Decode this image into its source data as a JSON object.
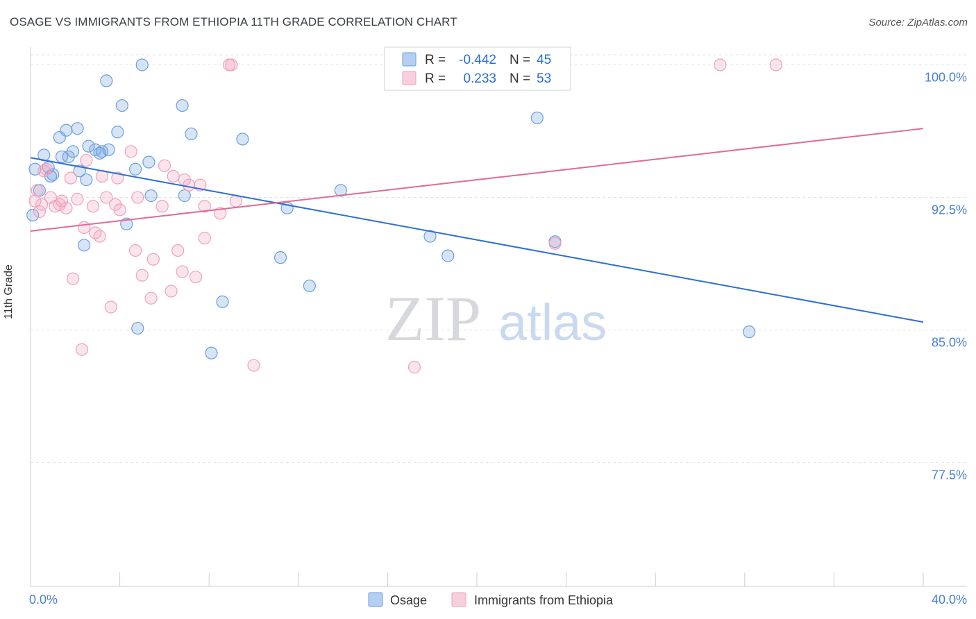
{
  "title": "OSAGE VS IMMIGRANTS FROM ETHIOPIA 11TH GRADE CORRELATION CHART",
  "source": "Source: ZipAtlas.com",
  "watermark": {
    "zip": "ZIP",
    "atlas": "atlas"
  },
  "chart_data": {
    "type": "scatter",
    "ylabel": "11th Grade",
    "xlim": [
      0,
      40
    ],
    "ylim": [
      70.5,
      101
    ],
    "x_tick_labels": [
      {
        "value": 0,
        "label": "0.0%"
      },
      {
        "value": 40,
        "label": "40.0%"
      }
    ],
    "y_ticks": [
      77.5,
      85.0,
      92.5,
      100.0
    ],
    "y_tick_labels": [
      "77.5%",
      "85.0%",
      "92.5%",
      "100.0%"
    ],
    "grid": true,
    "legend_position": "top-center",
    "stats": [
      {
        "r_label": "R =",
        "r": "-0.442",
        "n_label": "N =",
        "n": "45"
      },
      {
        "r_label": "R =",
        "r": "0.233",
        "n_label": "N =",
        "n": "53"
      }
    ],
    "series": [
      {
        "name": "Osage",
        "color": "#6a9fe0",
        "line_color": "#2a6fd4",
        "trend": {
          "x0": 0,
          "y0": 94.75,
          "x1": 40,
          "y1": 85.45
        },
        "points": [
          [
            0.2,
            94.1
          ],
          [
            0.4,
            92.9
          ],
          [
            0.6,
            94.9
          ],
          [
            0.8,
            94.2
          ],
          [
            0.9,
            93.7
          ],
          [
            1.0,
            93.8
          ],
          [
            1.3,
            95.9
          ],
          [
            1.4,
            94.8
          ],
          [
            1.6,
            96.3
          ],
          [
            1.7,
            94.8
          ],
          [
            1.9,
            95.1
          ],
          [
            2.1,
            96.4
          ],
          [
            2.2,
            94.0
          ],
          [
            2.4,
            89.8
          ],
          [
            2.5,
            93.5
          ],
          [
            2.6,
            95.4
          ],
          [
            2.9,
            95.2
          ],
          [
            3.1,
            95.0
          ],
          [
            3.2,
            95.1
          ],
          [
            3.5,
            95.2
          ],
          [
            3.4,
            99.1
          ],
          [
            3.9,
            96.2
          ],
          [
            4.1,
            97.7
          ],
          [
            4.3,
            91.0
          ],
          [
            4.7,
            94.1
          ],
          [
            4.8,
            85.1
          ],
          [
            5.0,
            100.0
          ],
          [
            5.3,
            94.5
          ],
          [
            5.4,
            92.6
          ],
          [
            6.8,
            97.7
          ],
          [
            6.9,
            92.6
          ],
          [
            7.2,
            96.1
          ],
          [
            8.1,
            83.7
          ],
          [
            8.6,
            86.6
          ],
          [
            9.5,
            95.8
          ],
          [
            11.2,
            89.1
          ],
          [
            11.5,
            91.9
          ],
          [
            12.5,
            87.5
          ],
          [
            13.9,
            92.9
          ],
          [
            17.9,
            90.3
          ],
          [
            18.7,
            89.2
          ],
          [
            22.7,
            97.0
          ],
          [
            23.5,
            90.0
          ],
          [
            32.2,
            84.9
          ],
          [
            0.1,
            91.5
          ]
        ]
      },
      {
        "name": "Immigrants from Ethiopia",
        "color": "#f0a0bc",
        "line_color": "#e06a96",
        "trend": {
          "x0": 0,
          "y0": 90.6,
          "x1": 40,
          "y1": 96.4
        },
        "points": [
          [
            0.2,
            92.3
          ],
          [
            0.3,
            92.9
          ],
          [
            0.4,
            91.7
          ],
          [
            0.5,
            92.1
          ],
          [
            0.6,
            94.0
          ],
          [
            0.7,
            94.1
          ],
          [
            0.9,
            92.5
          ],
          [
            1.1,
            92.0
          ],
          [
            1.3,
            92.1
          ],
          [
            1.4,
            92.3
          ],
          [
            1.6,
            91.9
          ],
          [
            1.8,
            93.6
          ],
          [
            1.9,
            87.9
          ],
          [
            2.1,
            92.4
          ],
          [
            2.3,
            83.9
          ],
          [
            2.4,
            90.8
          ],
          [
            2.5,
            94.6
          ],
          [
            2.8,
            92.0
          ],
          [
            2.9,
            90.5
          ],
          [
            3.1,
            90.3
          ],
          [
            3.2,
            93.7
          ],
          [
            3.4,
            92.5
          ],
          [
            3.6,
            86.3
          ],
          [
            3.8,
            92.1
          ],
          [
            3.9,
            93.6
          ],
          [
            4.0,
            91.8
          ],
          [
            4.5,
            95.1
          ],
          [
            4.7,
            89.5
          ],
          [
            4.8,
            92.5
          ],
          [
            5.0,
            88.1
          ],
          [
            5.4,
            86.8
          ],
          [
            5.5,
            89.0
          ],
          [
            5.9,
            92.0
          ],
          [
            6.0,
            94.3
          ],
          [
            6.3,
            87.2
          ],
          [
            6.4,
            93.7
          ],
          [
            6.6,
            89.5
          ],
          [
            6.8,
            88.3
          ],
          [
            6.9,
            93.5
          ],
          [
            7.1,
            93.2
          ],
          [
            7.4,
            88.0
          ],
          [
            7.6,
            93.2
          ],
          [
            7.8,
            92.0
          ],
          [
            7.8,
            90.2
          ],
          [
            8.5,
            91.6
          ],
          [
            8.9,
            100.0
          ],
          [
            9.0,
            100.0
          ],
          [
            9.2,
            92.3
          ],
          [
            10.0,
            83.0
          ],
          [
            17.2,
            82.9
          ],
          [
            23.5,
            89.9
          ],
          [
            30.9,
            100.0
          ],
          [
            33.4,
            100.0
          ]
        ]
      }
    ]
  }
}
